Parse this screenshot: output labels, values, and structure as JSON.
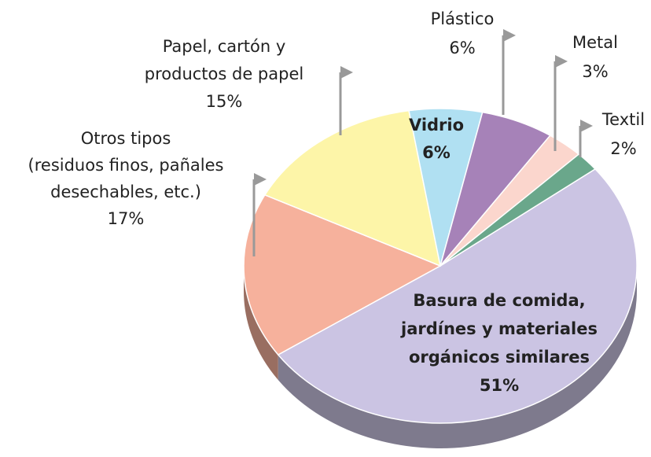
{
  "chart_data": {
    "type": "pie",
    "categories": [
      [
        "Basura de comida,",
        "jardínes y materiales",
        "orgánicos similares"
      ],
      [
        "Otros tipos",
        "(residuos finos, pañales",
        "desechables, etc.)"
      ],
      [
        "Papel, cartón y",
        "productos de papel"
      ],
      [
        "Vidrio"
      ],
      [
        "Plástico"
      ],
      [
        "Metal"
      ],
      [
        "Textil"
      ]
    ],
    "values": [
      51,
      17,
      15,
      6,
      6,
      3,
      2
    ],
    "value_labels": [
      "51%",
      "17%",
      "15%",
      "6%",
      "6%",
      "3%",
      "2%"
    ],
    "colors": [
      "#cbc4e3",
      "#f6b19c",
      "#fdf5a8",
      "#b0e0f2",
      "#a682b8",
      "#fbd6cd",
      "#6aa78b"
    ]
  }
}
